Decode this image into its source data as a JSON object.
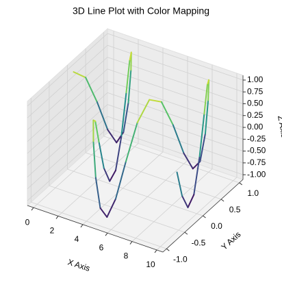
{
  "chart_data": {
    "type": "line3d",
    "title": "3D Line Plot with Color Mapping",
    "xlabel": "X Axis",
    "ylabel": "Y Axis",
    "zlabel": "Z Axis",
    "colormap": "viridis",
    "x": [
      0,
      0.25,
      0.5,
      0.75,
      1,
      1.25,
      1.5,
      1.75,
      2,
      2.25,
      2.5,
      2.75,
      3,
      3.25,
      3.5,
      3.75,
      4,
      4.25,
      4.5,
      4.75,
      5,
      5.25,
      5.5,
      5.75,
      6,
      6.25,
      6.5,
      6.75,
      7,
      7.25,
      7.5,
      7.75,
      8,
      8.25,
      8.5,
      8.75,
      9,
      9.25,
      9.5,
      9.75,
      10
    ],
    "y": [
      0,
      0.247,
      0.479,
      0.682,
      0.841,
      0.949,
      0.997,
      0.984,
      0.909,
      0.778,
      0.598,
      0.382,
      0.141,
      -0.108,
      -0.351,
      -0.572,
      -0.757,
      -0.895,
      -0.978,
      -0.999,
      -0.959,
      -0.859,
      -0.706,
      -0.51,
      -0.279,
      -0.033,
      0.215,
      0.45,
      0.657,
      0.823,
      0.938,
      0.995,
      0.989,
      0.923,
      0.798,
      0.624,
      0.412,
      0.174,
      -0.075,
      -0.319,
      -0.544
    ],
    "z": [
      1,
      0.732,
      0.071,
      -0.628,
      -0.99,
      -0.821,
      -0.211,
      0.512,
      0.96,
      0.893,
      0.347,
      -0.39,
      -0.911,
      -0.943,
      -0.476,
      0.253,
      0.844,
      0.984,
      0.598,
      -0.115,
      -0.76,
      -0.999,
      -0.7,
      -0.026,
      0.66,
      0.995,
      0.798,
      0.167,
      -0.548,
      -0.97,
      -0.874,
      -0.307,
      0.424,
      0.925,
      0.932,
      0.436,
      -0.292,
      -0.887,
      -0.962,
      -0.524,
      0.154
    ],
    "xlim": [
      -0.5,
      10.5
    ],
    "ylim": [
      -1.1,
      1.1
    ],
    "zlim": [
      -1.1,
      1.1
    ],
    "xticks": [
      0,
      2,
      4,
      6,
      8,
      10
    ],
    "yticks": [
      {
        "value": -1,
        "label": "-1.0"
      },
      {
        "value": -0.5,
        "label": "-0.5"
      },
      {
        "value": 0,
        "label": "0.0"
      },
      {
        "value": 0.5,
        "label": "0.5"
      },
      {
        "value": 1,
        "label": "1.0"
      }
    ],
    "zticks": [
      {
        "value": -1,
        "label": "-1.00"
      },
      {
        "value": -0.75,
        "label": "-0.75"
      },
      {
        "value": -0.5,
        "label": "-0.50"
      },
      {
        "value": -0.25,
        "label": "-0.25"
      },
      {
        "value": 0,
        "label": "0.00"
      },
      {
        "value": 0.25,
        "label": "0.25"
      },
      {
        "value": 0.5,
        "label": "0.50"
      },
      {
        "value": 0.75,
        "label": "0.75"
      },
      {
        "value": 1,
        "label": "1.00"
      }
    ],
    "grid": true
  }
}
